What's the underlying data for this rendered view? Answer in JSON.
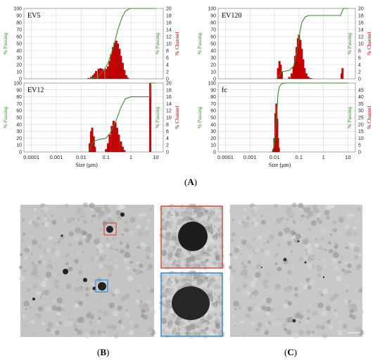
{
  "colors": {
    "passing": "#3a8a2e",
    "channel": "#cc0000",
    "channel_dark": "#7a1010",
    "grid": "#d6d6d6",
    "inset_red": "#d9534f",
    "inset_blue": "#3f8fd6",
    "tem_bg": "#bcbcbc"
  },
  "captions": {
    "a": [
      "(",
      "A",
      ")"
    ],
    "b": [
      "(",
      "B",
      ")"
    ],
    "c": [
      "(",
      "C",
      ")"
    ]
  },
  "chart_data": [
    {
      "type": "bar",
      "title": "EV5",
      "xscale": "log",
      "xlim": [
        5e-05,
        20
      ],
      "ylim_left": [
        0,
        100
      ],
      "ylim_right": [
        0,
        20
      ],
      "yticks_left": [
        "0",
        "10",
        "20",
        "30",
        "40",
        "50",
        "60",
        "70",
        "80",
        "90",
        "100"
      ],
      "yticks_right": [
        "0",
        "2",
        "4",
        "6",
        "8",
        "10",
        "12",
        "14",
        "16",
        "18",
        "20"
      ],
      "ylabel_left": "% Passing",
      "ylabel_right": "% Channel",
      "xticks": [],
      "xlabel": "",
      "channel": {
        "x": [
          0.02,
          0.025,
          0.03,
          0.035,
          0.04,
          0.05,
          0.06,
          0.07,
          0.08,
          0.1,
          0.12,
          0.14,
          0.16,
          0.19,
          0.22,
          0.26,
          0.3,
          0.35,
          0.4,
          0.47,
          0.55,
          0.65,
          0.75
        ],
        "values": [
          0.2,
          0.5,
          1.0,
          1.5,
          2.2,
          2.8,
          3.0,
          2.8,
          2.5,
          2.8,
          3.5,
          5.0,
          7.0,
          9.0,
          10.2,
          10.8,
          10.0,
          8.5,
          6.5,
          4.5,
          2.5,
          1.0,
          0.3
        ]
      },
      "passing": {
        "x": [
          0.02,
          0.05,
          0.08,
          0.12,
          0.2,
          0.3,
          0.45,
          0.6,
          0.8,
          1.0,
          10
        ],
        "values": [
          0,
          3,
          12,
          22,
          45,
          70,
          88,
          96,
          99,
          100,
          100
        ]
      }
    },
    {
      "type": "bar",
      "title": "EV120",
      "xscale": "log",
      "xlim": [
        5e-05,
        20
      ],
      "ylim_left": [
        0,
        100
      ],
      "ylim_right": [
        0,
        20
      ],
      "yticks_left": [
        "0",
        "10",
        "20",
        "30",
        "40",
        "50",
        "60",
        "70",
        "80",
        "90",
        "100"
      ],
      "yticks_right": [
        "0",
        "2",
        "4",
        "6",
        "8",
        "10",
        "12",
        "14",
        "16",
        "18",
        "20"
      ],
      "ylabel_left": "% Passing",
      "ylabel_right": "% Channel",
      "xticks": [],
      "xlabel": "",
      "channel": {
        "x": [
          0.014,
          0.016,
          0.018,
          0.02,
          0.04,
          0.05,
          0.06,
          0.07,
          0.08,
          0.09,
          0.1,
          0.115,
          0.13,
          0.15,
          0.17,
          0.2,
          0.24,
          0.28,
          0.33,
          5.5,
          6.0
        ],
        "values": [
          3.0,
          5.0,
          4.0,
          2.0,
          0.5,
          1.5,
          3.5,
          6.5,
          9.0,
          11.5,
          12.5,
          11.0,
          8.5,
          5.5,
          3.0,
          1.5,
          0.6,
          0.2,
          0.1,
          1.5,
          3.0
        ]
      },
      "passing": {
        "x": [
          0.012,
          0.02,
          0.04,
          0.06,
          0.08,
          0.1,
          0.13,
          0.18,
          0.25,
          0.4,
          5,
          6.5,
          10
        ],
        "values": [
          0,
          10,
          12,
          18,
          35,
          60,
          80,
          88,
          90,
          90,
          90,
          100,
          100
        ]
      }
    },
    {
      "type": "bar",
      "title": "EV12",
      "xscale": "log",
      "xlim": [
        5e-05,
        20
      ],
      "ylim_left": [
        0,
        100
      ],
      "ylim_right": [
        0,
        20
      ],
      "yticks_left": [
        "0",
        "10",
        "20",
        "30",
        "40",
        "50",
        "60",
        "70",
        "80",
        "90",
        "100"
      ],
      "yticks_right": [
        "0",
        "2",
        "4",
        "6",
        "8",
        "10",
        "12",
        "14",
        "16",
        "18",
        "20"
      ],
      "ylabel_left": "% Passing",
      "ylabel_right": "% Channel",
      "xticks": [
        "0.0001",
        "0.001",
        "0.01",
        "0.1",
        "1",
        "10"
      ],
      "xlabel": "Size (μm)",
      "channel": {
        "x": [
          0.022,
          0.025,
          0.028,
          0.032,
          0.036,
          0.1,
          0.12,
          0.14,
          0.17,
          0.2,
          0.24,
          0.28,
          0.33,
          0.4,
          0.47,
          0.55,
          6.0
        ],
        "values": [
          2.5,
          6.0,
          7.0,
          4.5,
          1.5,
          0.8,
          2.5,
          5.0,
          7.5,
          9.0,
          8.5,
          7.0,
          5.0,
          3.0,
          1.5,
          0.5,
          20
        ]
      },
      "passing": {
        "x": [
          0.02,
          0.03,
          0.05,
          0.1,
          0.15,
          0.25,
          0.4,
          0.6,
          1.0,
          5.9,
          6.1,
          10
        ],
        "values": [
          0,
          15,
          18,
          20,
          28,
          45,
          65,
          77,
          80,
          80,
          100,
          100
        ]
      }
    },
    {
      "type": "bar",
      "title": "fc",
      "xscale": "log",
      "xlim": [
        5e-05,
        20
      ],
      "ylim_left": [
        0,
        100
      ],
      "ylim_right": [
        0,
        50
      ],
      "yticks_left": [
        "0",
        "10",
        "20",
        "30",
        "40",
        "50",
        "60",
        "70",
        "80",
        "90",
        "100"
      ],
      "yticks_right": [
        "0",
        "5",
        "10",
        "15",
        "20",
        "25",
        "30",
        "35",
        "40",
        "45"
      ],
      "ylabel_left": "% Passing",
      "ylabel_right": "% Channel",
      "xticks": [
        "0.0001",
        "0.001",
        "0.01",
        "0.1",
        "1",
        "10"
      ],
      "xlabel": "Size (μm)",
      "channel": {
        "x": [
          0.009,
          0.01,
          0.011,
          0.012,
          0.013,
          0.014,
          0.015
        ],
        "values": [
          2,
          10,
          28,
          35,
          24,
          10,
          3
        ]
      },
      "passing": {
        "x": [
          0.008,
          0.01,
          0.012,
          0.014,
          0.016,
          0.02,
          0.03,
          10
        ],
        "values": [
          0,
          10,
          50,
          85,
          95,
          99,
          100,
          100
        ]
      }
    }
  ]
}
